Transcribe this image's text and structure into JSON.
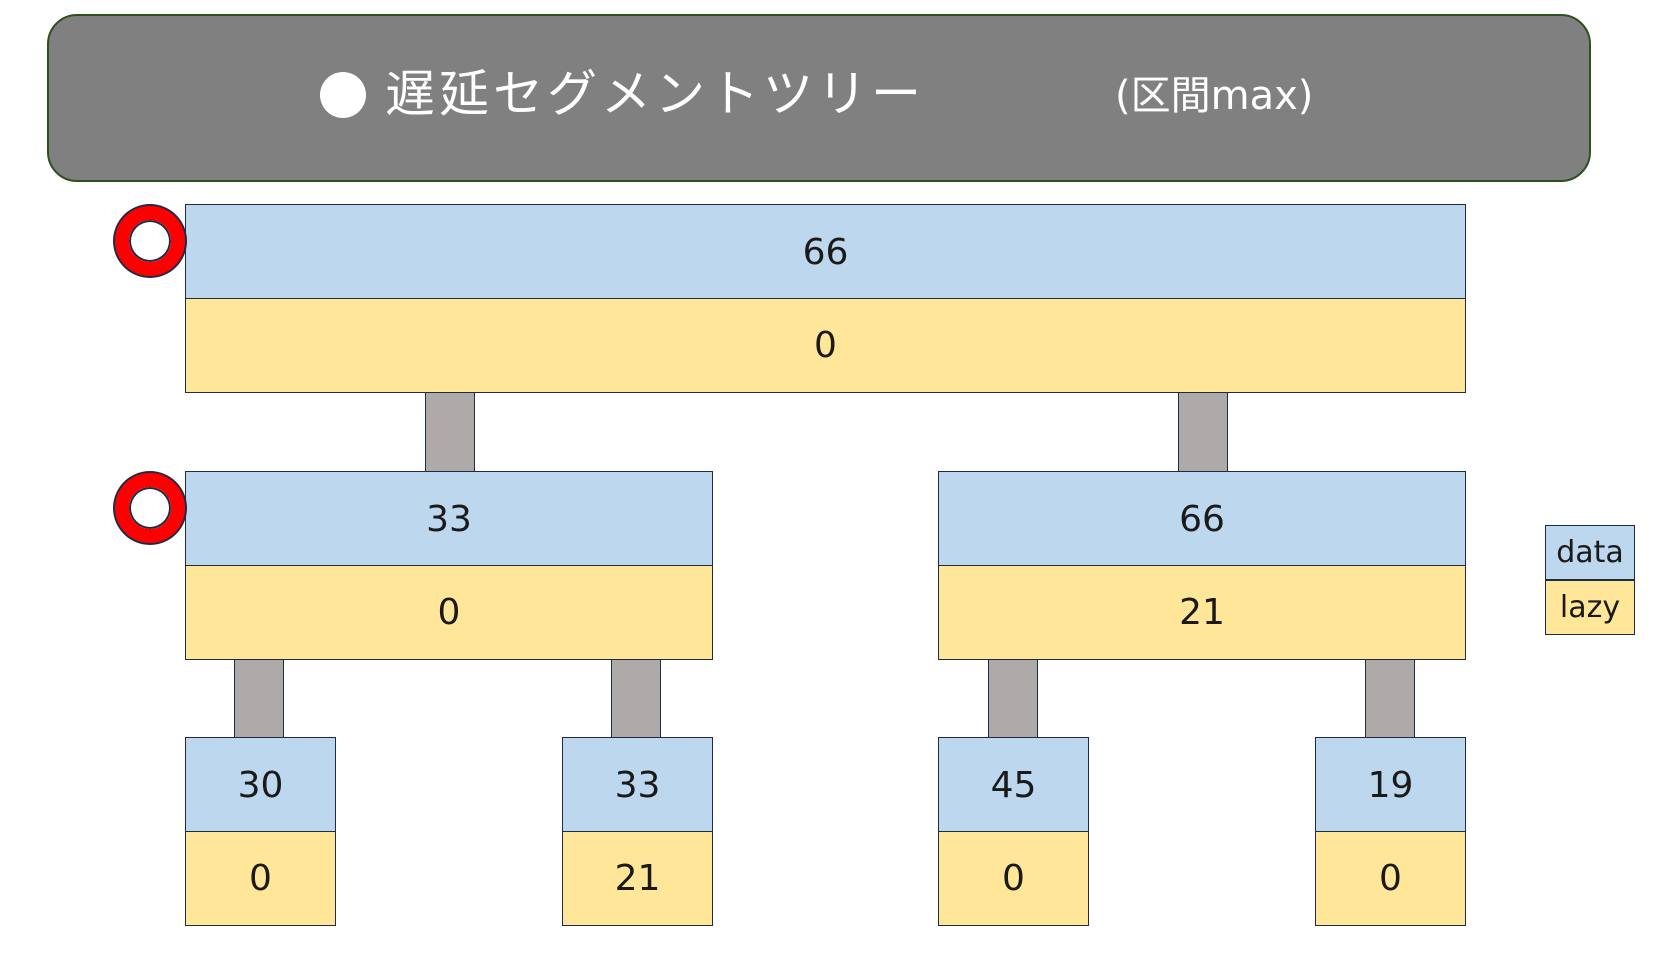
{
  "banner": {
    "title": "遅延セグメントツリー",
    "subtitle": "(区間max)"
  },
  "legend": {
    "data_label": "data",
    "lazy_label": "lazy"
  },
  "colors": {
    "data_fill": "#bdd7ee",
    "lazy_fill": "#ffe699",
    "connector": "#aeaaaa",
    "marker": "#ff0000",
    "banner": "#808080"
  },
  "tree": {
    "root": {
      "data": "66",
      "lazy": "0"
    },
    "left": {
      "data": "33",
      "lazy": "0"
    },
    "right": {
      "data": "66",
      "lazy": "21"
    },
    "leaves": [
      {
        "data": "30",
        "lazy": "0"
      },
      {
        "data": "33",
        "lazy": "21"
      },
      {
        "data": "45",
        "lazy": "0"
      },
      {
        "data": "19",
        "lazy": "0"
      }
    ]
  }
}
